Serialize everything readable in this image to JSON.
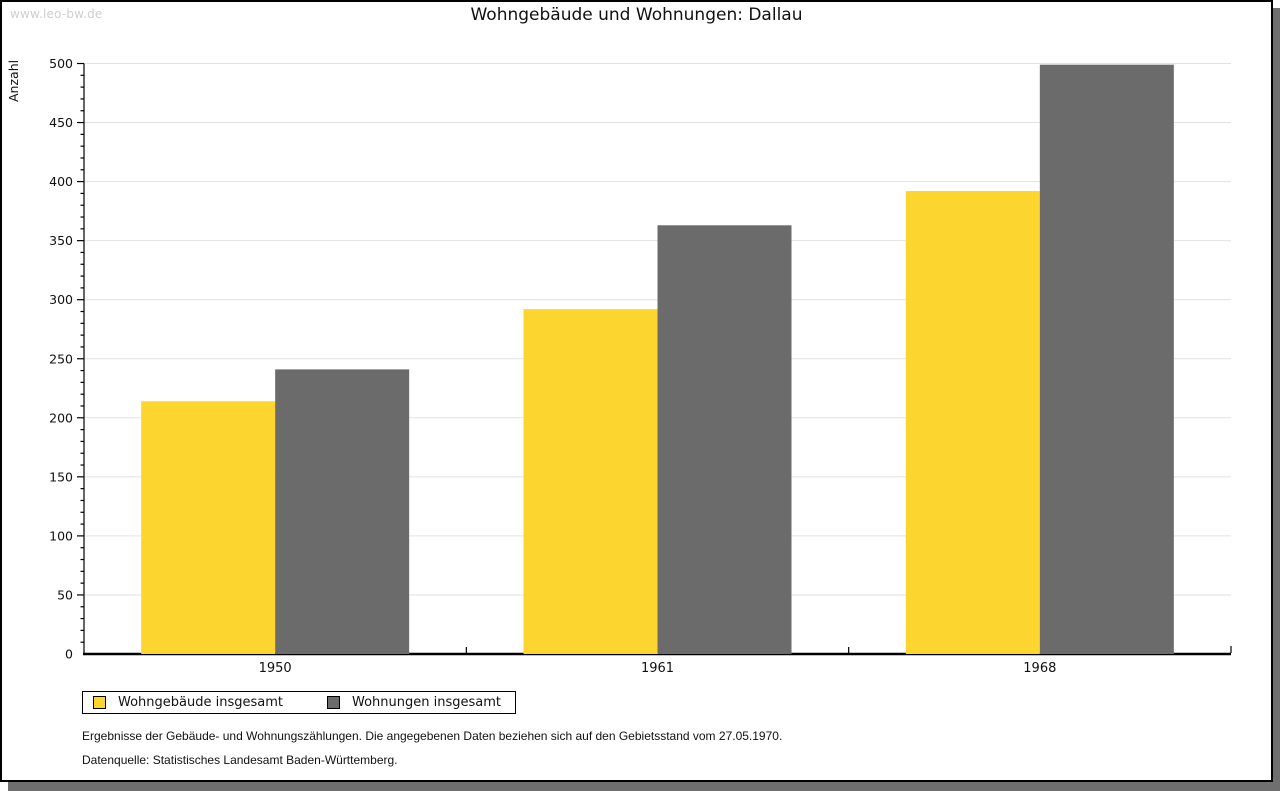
{
  "watermark": "www.leo-bw.de",
  "footnotes": {
    "line1": "Ergebnisse der Gebäude- und Wohnungszählungen. Die angegebenen Daten beziehen sich auf den Gebietsstand vom 27.05.1970.",
    "line2": "Datenquelle: Statistisches Landesamt Baden-Württemberg."
  },
  "chart_data": {
    "type": "bar",
    "title": "Wohngebäude und Wohnungen: Dallau",
    "ylabel": "Anzahl",
    "xlabel": "",
    "categories": [
      "1950",
      "1961",
      "1968"
    ],
    "series": [
      {
        "name": "Wohngebäude insgesamt",
        "color": "#FDD52F",
        "values": [
          214,
          292,
          392
        ]
      },
      {
        "name": "Wohnungen insgesamt",
        "color": "#6B6B6B",
        "values": [
          241,
          363,
          499
        ]
      }
    ],
    "ylim": [
      0,
      500
    ],
    "y_major_step": 50,
    "y_minor_step": 10,
    "grid": true,
    "gridline_color": "#e2e2e2",
    "legend_position": "bottom-left"
  }
}
